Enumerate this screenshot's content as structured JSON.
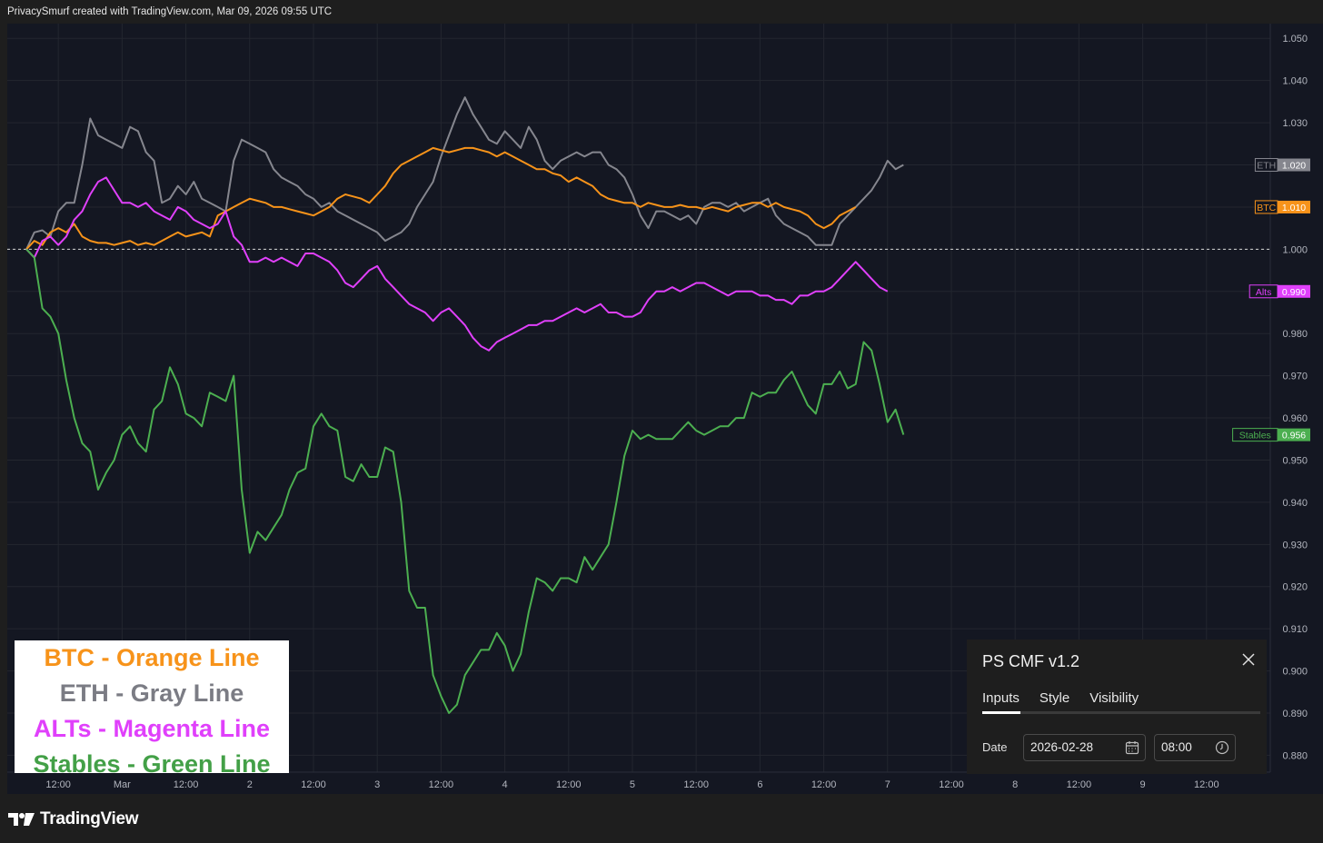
{
  "header": {
    "attribution": "PrivacySmurf created with TradingView.com, Mar 09, 2026 09:55 UTC"
  },
  "footer": {
    "brand": "TradingView"
  },
  "legend_box": {
    "btc": "BTC - Orange Line",
    "eth": "ETH - Gray Line",
    "alts": "ALTs - Magenta Line",
    "stables": "Stables - Green Line"
  },
  "indicator_panel": {
    "title": "PS CMF v1.2",
    "tabs": [
      "Inputs",
      "Style",
      "Visibility"
    ],
    "active_tab": "Inputs",
    "date_label": "Date",
    "date_value": "2026-02-28",
    "time_value": "08:00"
  },
  "colors": {
    "background": "#141722",
    "grid": "#23262f",
    "btc": "#f7931a",
    "eth": "#85868e",
    "alts": "#e040fb",
    "stables": "#4caf50",
    "axis_text": "#b2b5be"
  },
  "chart_data": {
    "type": "line",
    "title": "",
    "xlabel": "",
    "ylabel": "",
    "ylim": [
      0.876,
      1.0535
    ],
    "y_ticks": [
      "1.050",
      "1.040",
      "1.030",
      "1.020",
      "1.010",
      "1.000",
      "0.990",
      "0.980",
      "0.970",
      "0.960",
      "0.950",
      "0.940",
      "0.930",
      "0.920",
      "0.910",
      "0.900",
      "0.890",
      "0.880"
    ],
    "x_tick_labels": [
      "12:00",
      "Mar",
      "12:00",
      "2",
      "12:00",
      "3",
      "12:00",
      "4",
      "12:00",
      "5",
      "12:00",
      "6",
      "12:00",
      "7",
      "12:00",
      "8",
      "12:00",
      "9",
      "12:00"
    ],
    "x_tick_positions": [
      0.5,
      1,
      1.5,
      2,
      2.5,
      3,
      3.5,
      4,
      4.5,
      5,
      5.5,
      6,
      6.5,
      7,
      7.5,
      8,
      8.5,
      9,
      9.5
    ],
    "xlim": [
      0.1,
      10.0
    ],
    "x_step_days": 0.0625,
    "x_start": 0.25,
    "baseline": 1.0,
    "series": [
      {
        "name": "ETH",
        "label": "ETH",
        "last": "1.020",
        "values": [
          1.0,
          1.004,
          1.0045,
          1.003,
          1.009,
          1.011,
          1.011,
          1.02,
          1.031,
          1.027,
          1.026,
          1.025,
          1.024,
          1.029,
          1.028,
          1.023,
          1.021,
          1.011,
          1.012,
          1.015,
          1.013,
          1.016,
          1.012,
          1.011,
          1.01,
          1.009,
          1.021,
          1.026,
          1.025,
          1.024,
          1.023,
          1.019,
          1.017,
          1.016,
          1.015,
          1.013,
          1.012,
          1.01,
          1.011,
          1.009,
          1.008,
          1.007,
          1.006,
          1.005,
          1.004,
          1.002,
          1.003,
          1.004,
          1.006,
          1.01,
          1.013,
          1.016,
          1.022,
          1.027,
          1.032,
          1.036,
          1.032,
          1.029,
          1.026,
          1.025,
          1.028,
          1.026,
          1.024,
          1.029,
          1.026,
          1.021,
          1.019,
          1.021,
          1.022,
          1.023,
          1.022,
          1.023,
          1.023,
          1.02,
          1.019,
          1.017,
          1.013,
          1.008,
          1.005,
          1.009,
          1.009,
          1.008,
          1.007,
          1.008,
          1.006,
          1.01,
          1.011,
          1.011,
          1.01,
          1.011,
          1.009,
          1.01,
          1.011,
          1.012,
          1.008,
          1.006,
          1.005,
          1.004,
          1.003,
          1.001,
          1.001,
          1.001,
          1.006,
          1.008,
          1.01,
          1.012,
          1.014,
          1.017,
          1.021,
          1.019,
          1.02
        ]
      },
      {
        "name": "BTC",
        "label": "BTC",
        "last": "1.010",
        "values": [
          1.0,
          1.002,
          1.001,
          1.004,
          1.005,
          1.004,
          1.006,
          1.003,
          1.002,
          1.0015,
          1.0015,
          1.001,
          1.0015,
          1.002,
          1.001,
          1.0015,
          1.001,
          1.002,
          1.003,
          1.004,
          1.003,
          1.0035,
          1.004,
          1.003,
          1.008,
          1.009,
          1.01,
          1.011,
          1.012,
          1.0115,
          1.011,
          1.01,
          1.01,
          1.0095,
          1.009,
          1.0085,
          1.008,
          1.009,
          1.01,
          1.012,
          1.013,
          1.0125,
          1.012,
          1.011,
          1.013,
          1.015,
          1.018,
          1.02,
          1.021,
          1.022,
          1.023,
          1.024,
          1.0235,
          1.023,
          1.0235,
          1.024,
          1.024,
          1.0235,
          1.023,
          1.022,
          1.023,
          1.022,
          1.021,
          1.02,
          1.019,
          1.019,
          1.018,
          1.0175,
          1.016,
          1.017,
          1.016,
          1.015,
          1.013,
          1.012,
          1.0115,
          1.011,
          1.011,
          1.01,
          1.011,
          1.0105,
          1.01,
          1.01,
          1.0105,
          1.01,
          1.01,
          1.0095,
          1.01,
          1.0095,
          1.009,
          1.01,
          1.0105,
          1.011,
          1.011,
          1.01,
          1.011,
          1.01,
          1.0095,
          1.009,
          1.008,
          1.006,
          1.005,
          1.006,
          1.008,
          1.009,
          1.01
        ]
      },
      {
        "name": "ALTs",
        "label": "Alts",
        "last": "0.990",
        "values": [
          1.0,
          0.998,
          1.002,
          1.003,
          1.001,
          1.003,
          1.007,
          1.009,
          1.013,
          1.016,
          1.017,
          1.014,
          1.011,
          1.011,
          1.01,
          1.011,
          1.009,
          1.008,
          1.007,
          1.01,
          1.009,
          1.007,
          1.006,
          1.005,
          1.006,
          1.009,
          1.003,
          1.001,
          0.997,
          0.997,
          0.998,
          0.997,
          0.998,
          0.997,
          0.996,
          0.999,
          0.999,
          0.998,
          0.997,
          0.995,
          0.992,
          0.991,
          0.993,
          0.995,
          0.996,
          0.993,
          0.991,
          0.989,
          0.987,
          0.986,
          0.985,
          0.983,
          0.985,
          0.986,
          0.984,
          0.982,
          0.979,
          0.977,
          0.976,
          0.978,
          0.979,
          0.98,
          0.981,
          0.982,
          0.982,
          0.983,
          0.983,
          0.984,
          0.985,
          0.986,
          0.985,
          0.986,
          0.987,
          0.985,
          0.985,
          0.984,
          0.984,
          0.985,
          0.988,
          0.99,
          0.99,
          0.991,
          0.99,
          0.991,
          0.992,
          0.992,
          0.991,
          0.99,
          0.989,
          0.99,
          0.99,
          0.99,
          0.989,
          0.989,
          0.988,
          0.988,
          0.987,
          0.989,
          0.989,
          0.99,
          0.99,
          0.991,
          0.993,
          0.995,
          0.997,
          0.995,
          0.993,
          0.991,
          0.99
        ]
      },
      {
        "name": "Stables",
        "label": "Stables",
        "last": "0.956",
        "values": [
          1.0,
          0.998,
          0.986,
          0.984,
          0.98,
          0.969,
          0.96,
          0.954,
          0.952,
          0.943,
          0.947,
          0.95,
          0.956,
          0.958,
          0.954,
          0.952,
          0.962,
          0.964,
          0.972,
          0.968,
          0.961,
          0.96,
          0.958,
          0.966,
          0.965,
          0.964,
          0.97,
          0.943,
          0.928,
          0.933,
          0.931,
          0.934,
          0.937,
          0.943,
          0.947,
          0.948,
          0.958,
          0.961,
          0.958,
          0.957,
          0.946,
          0.945,
          0.949,
          0.946,
          0.946,
          0.953,
          0.952,
          0.94,
          0.919,
          0.915,
          0.915,
          0.899,
          0.894,
          0.89,
          0.892,
          0.899,
          0.902,
          0.905,
          0.905,
          0.909,
          0.906,
          0.9,
          0.904,
          0.914,
          0.922,
          0.921,
          0.919,
          0.922,
          0.922,
          0.921,
          0.927,
          0.924,
          0.927,
          0.93,
          0.94,
          0.951,
          0.957,
          0.955,
          0.956,
          0.955,
          0.955,
          0.955,
          0.957,
          0.959,
          0.957,
          0.956,
          0.957,
          0.958,
          0.958,
          0.96,
          0.96,
          0.966,
          0.965,
          0.966,
          0.966,
          0.969,
          0.971,
          0.967,
          0.963,
          0.961,
          0.968,
          0.968,
          0.971,
          0.967,
          0.968,
          0.978,
          0.976,
          0.968,
          0.959,
          0.962,
          0.956
        ]
      }
    ]
  }
}
